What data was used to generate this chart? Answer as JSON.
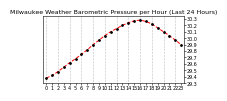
{
  "title": "Milwaukee Weather Barometric Pressure per Hour (Last 24 Hours)",
  "bg_color": "#ffffff",
  "plot_bg_color": "#ffffff",
  "line_color": "#ff0000",
  "dot_color": "#000000",
  "grid_color": "#888888",
  "hours": [
    0,
    1,
    2,
    3,
    4,
    5,
    6,
    7,
    8,
    9,
    10,
    11,
    12,
    13,
    14,
    15,
    16,
    17,
    18,
    19,
    20,
    21,
    22,
    23
  ],
  "pressure": [
    29.38,
    29.42,
    29.48,
    29.55,
    29.62,
    29.68,
    29.75,
    29.82,
    29.9,
    29.97,
    30.04,
    30.1,
    30.15,
    30.2,
    30.24,
    30.27,
    30.28,
    30.26,
    30.22,
    30.16,
    30.1,
    30.04,
    29.97,
    29.9
  ],
  "ylim": [
    29.3,
    30.35
  ],
  "yticks": [
    29.3,
    29.4,
    29.5,
    29.6,
    29.7,
    29.8,
    29.9,
    30.0,
    30.1,
    30.2,
    30.3
  ],
  "ytick_labels": [
    "29.3",
    "29.4",
    "29.5",
    "29.6",
    "29.7",
    "29.8",
    "29.9",
    "30.0",
    "30.1",
    "30.2",
    "30.3"
  ],
  "xtick_positions": [
    0,
    1,
    2,
    3,
    4,
    5,
    6,
    7,
    8,
    9,
    10,
    11,
    12,
    13,
    14,
    15,
    16,
    17,
    18,
    19,
    20,
    21,
    22,
    23
  ],
  "xtick_labels": [
    "0",
    "1",
    "2",
    "3",
    "4",
    "5",
    "6",
    "7",
    "8",
    "9",
    "10",
    "11",
    "12",
    "13",
    "14",
    "15",
    "16",
    "17",
    "18",
    "19",
    "20",
    "21",
    "22",
    "23"
  ],
  "grid_xticks": [
    0,
    2,
    4,
    6,
    8,
    10,
    12,
    14,
    16,
    18,
    20,
    22
  ],
  "title_fontsize": 4.5,
  "tick_fontsize": 3.5,
  "line_width": 0.7,
  "dot_size": 2.0
}
